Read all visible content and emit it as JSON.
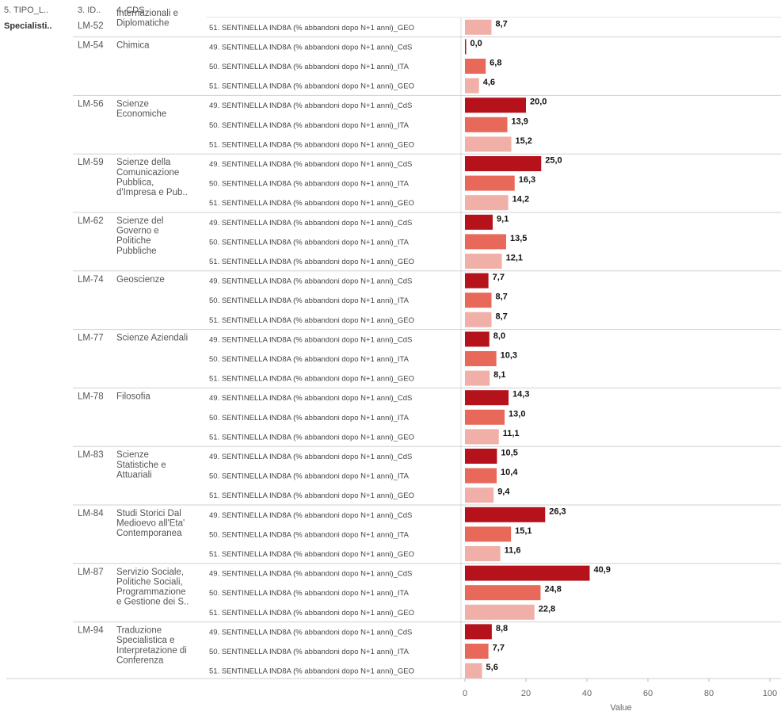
{
  "headers": {
    "tipo": "5. TIPO_L..",
    "id": "3. ID..",
    "cds": "4. CDS"
  },
  "tipo_value": "Specialisti..",
  "chart_data": {
    "type": "bar",
    "orientation": "horizontal",
    "xlabel": "Value",
    "xlim": [
      0,
      100
    ],
    "xticks": [
      0,
      20,
      40,
      60,
      80,
      100
    ],
    "colors": {
      "CdS": "#b5121b",
      "ITA": "#e8685a",
      "GEO": "#f0b0a8"
    },
    "groups": [
      {
        "id": "LM-52",
        "name": [
          "Internazionali e",
          "Diplomatiche"
        ],
        "rows": [
          {
            "measure": "51. SENTINELLA IND8A (% abbandoni dopo N+1 anni)_GEO",
            "kind": "GEO",
            "value": 8.7,
            "label": "8,7"
          }
        ]
      },
      {
        "id": "LM-54",
        "name": [
          "Chimica"
        ],
        "rows": [
          {
            "measure": "49. SENTINELLA IND8A (% abbandoni dopo N+1 anni)_CdS",
            "kind": "CdS",
            "value": 0.0,
            "label": "0,0"
          },
          {
            "measure": "50. SENTINELLA IND8A (% abbandoni dopo N+1 anni)_ITA",
            "kind": "ITA",
            "value": 6.8,
            "label": "6,8"
          },
          {
            "measure": "51. SENTINELLA IND8A (% abbandoni dopo N+1 anni)_GEO",
            "kind": "GEO",
            "value": 4.6,
            "label": "4,6"
          }
        ]
      },
      {
        "id": "LM-56",
        "name": [
          "Scienze",
          "Economiche"
        ],
        "rows": [
          {
            "measure": "49. SENTINELLA IND8A (% abbandoni dopo N+1 anni)_CdS",
            "kind": "CdS",
            "value": 20.0,
            "label": "20,0"
          },
          {
            "measure": "50. SENTINELLA IND8A (% abbandoni dopo N+1 anni)_ITA",
            "kind": "ITA",
            "value": 13.9,
            "label": "13,9"
          },
          {
            "measure": "51. SENTINELLA IND8A (% abbandoni dopo N+1 anni)_GEO",
            "kind": "GEO",
            "value": 15.2,
            "label": "15,2"
          }
        ]
      },
      {
        "id": "LM-59",
        "name": [
          "Scienze della",
          "Comunicazione",
          "Pubblica,",
          "d'Impresa e Pub.."
        ],
        "rows": [
          {
            "measure": "49. SENTINELLA IND8A (% abbandoni dopo N+1 anni)_CdS",
            "kind": "CdS",
            "value": 25.0,
            "label": "25,0"
          },
          {
            "measure": "50. SENTINELLA IND8A (% abbandoni dopo N+1 anni)_ITA",
            "kind": "ITA",
            "value": 16.3,
            "label": "16,3"
          },
          {
            "measure": "51. SENTINELLA IND8A (% abbandoni dopo N+1 anni)_GEO",
            "kind": "GEO",
            "value": 14.2,
            "label": "14,2"
          }
        ]
      },
      {
        "id": "LM-62",
        "name": [
          "Scienze del",
          "Governo e",
          "Politiche",
          "Pubbliche"
        ],
        "rows": [
          {
            "measure": "49. SENTINELLA IND8A (% abbandoni dopo N+1 anni)_CdS",
            "kind": "CdS",
            "value": 9.1,
            "label": "9,1"
          },
          {
            "measure": "50. SENTINELLA IND8A (% abbandoni dopo N+1 anni)_ITA",
            "kind": "ITA",
            "value": 13.5,
            "label": "13,5"
          },
          {
            "measure": "51. SENTINELLA IND8A (% abbandoni dopo N+1 anni)_GEO",
            "kind": "GEO",
            "value": 12.1,
            "label": "12,1"
          }
        ]
      },
      {
        "id": "LM-74",
        "name": [
          "Geoscienze"
        ],
        "rows": [
          {
            "measure": "49. SENTINELLA IND8A (% abbandoni dopo N+1 anni)_CdS",
            "kind": "CdS",
            "value": 7.7,
            "label": "7,7"
          },
          {
            "measure": "50. SENTINELLA IND8A (% abbandoni dopo N+1 anni)_ITA",
            "kind": "ITA",
            "value": 8.7,
            "label": "8,7"
          },
          {
            "measure": "51. SENTINELLA IND8A (% abbandoni dopo N+1 anni)_GEO",
            "kind": "GEO",
            "value": 8.7,
            "label": "8,7"
          }
        ]
      },
      {
        "id": "LM-77",
        "name": [
          "Scienze Aziendali"
        ],
        "rows": [
          {
            "measure": "49. SENTINELLA IND8A (% abbandoni dopo N+1 anni)_CdS",
            "kind": "CdS",
            "value": 8.0,
            "label": "8,0"
          },
          {
            "measure": "50. SENTINELLA IND8A (% abbandoni dopo N+1 anni)_ITA",
            "kind": "ITA",
            "value": 10.3,
            "label": "10,3"
          },
          {
            "measure": "51. SENTINELLA IND8A (% abbandoni dopo N+1 anni)_GEO",
            "kind": "GEO",
            "value": 8.1,
            "label": "8,1"
          }
        ]
      },
      {
        "id": "LM-78",
        "name": [
          "Filosofia"
        ],
        "rows": [
          {
            "measure": "49. SENTINELLA IND8A (% abbandoni dopo N+1 anni)_CdS",
            "kind": "CdS",
            "value": 14.3,
            "label": "14,3"
          },
          {
            "measure": "50. SENTINELLA IND8A (% abbandoni dopo N+1 anni)_ITA",
            "kind": "ITA",
            "value": 13.0,
            "label": "13,0"
          },
          {
            "measure": "51. SENTINELLA IND8A (% abbandoni dopo N+1 anni)_GEO",
            "kind": "GEO",
            "value": 11.1,
            "label": "11,1"
          }
        ]
      },
      {
        "id": "LM-83",
        "name": [
          "Scienze",
          "Statistiche e",
          "Attuariali"
        ],
        "rows": [
          {
            "measure": "49. SENTINELLA IND8A (% abbandoni dopo N+1 anni)_CdS",
            "kind": "CdS",
            "value": 10.5,
            "label": "10,5"
          },
          {
            "measure": "50. SENTINELLA IND8A (% abbandoni dopo N+1 anni)_ITA",
            "kind": "ITA",
            "value": 10.4,
            "label": "10,4"
          },
          {
            "measure": "51. SENTINELLA IND8A (% abbandoni dopo N+1 anni)_GEO",
            "kind": "GEO",
            "value": 9.4,
            "label": "9,4"
          }
        ]
      },
      {
        "id": "LM-84",
        "name": [
          "Studi Storici Dal",
          "Medioevo all'Eta'",
          "Contemporanea"
        ],
        "rows": [
          {
            "measure": "49. SENTINELLA IND8A (% abbandoni dopo N+1 anni)_CdS",
            "kind": "CdS",
            "value": 26.3,
            "label": "26,3"
          },
          {
            "measure": "50. SENTINELLA IND8A (% abbandoni dopo N+1 anni)_ITA",
            "kind": "ITA",
            "value": 15.1,
            "label": "15,1"
          },
          {
            "measure": "51. SENTINELLA IND8A (% abbandoni dopo N+1 anni)_GEO",
            "kind": "GEO",
            "value": 11.6,
            "label": "11,6"
          }
        ]
      },
      {
        "id": "LM-87",
        "name": [
          "Servizio Sociale,",
          "Politiche Sociali,",
          "Programmazione",
          "e Gestione dei S.."
        ],
        "rows": [
          {
            "measure": "49. SENTINELLA IND8A (% abbandoni dopo N+1 anni)_CdS",
            "kind": "CdS",
            "value": 40.9,
            "label": "40,9"
          },
          {
            "measure": "50. SENTINELLA IND8A (% abbandoni dopo N+1 anni)_ITA",
            "kind": "ITA",
            "value": 24.8,
            "label": "24,8"
          },
          {
            "measure": "51. SENTINELLA IND8A (% abbandoni dopo N+1 anni)_GEO",
            "kind": "GEO",
            "value": 22.8,
            "label": "22,8"
          }
        ]
      },
      {
        "id": "LM-94",
        "name": [
          "Traduzione",
          "Specialistica e",
          "Interpretazione di",
          "Conferenza"
        ],
        "rows": [
          {
            "measure": "49. SENTINELLA IND8A (% abbandoni dopo N+1 anni)_CdS",
            "kind": "CdS",
            "value": 8.8,
            "label": "8,8"
          },
          {
            "measure": "50. SENTINELLA IND8A (% abbandoni dopo N+1 anni)_ITA",
            "kind": "ITA",
            "value": 7.7,
            "label": "7,7"
          },
          {
            "measure": "51. SENTINELLA IND8A (% abbandoni dopo N+1 anni)_GEO",
            "kind": "GEO",
            "value": 5.6,
            "label": "5,6"
          }
        ]
      }
    ]
  }
}
